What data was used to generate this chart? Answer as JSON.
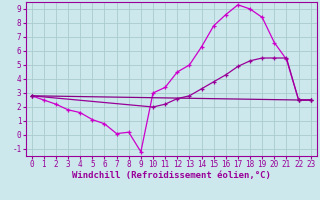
{
  "xlabel": "Windchill (Refroidissement éolien,°C)",
  "xlim": [
    -0.5,
    23.5
  ],
  "ylim": [
    -1.5,
    9.5
  ],
  "xticks": [
    0,
    1,
    2,
    3,
    4,
    5,
    6,
    7,
    8,
    9,
    10,
    11,
    12,
    13,
    14,
    15,
    16,
    17,
    18,
    19,
    20,
    21,
    22,
    23
  ],
  "yticks": [
    -1,
    0,
    1,
    2,
    3,
    4,
    5,
    6,
    7,
    8,
    9
  ],
  "bg_color": "#cce8ec",
  "grid_color": "#aacccc",
  "line_color1": "#990099",
  "line_color2": "#cc00cc",
  "line_color3": "#880088",
  "line1_x": [
    0,
    1,
    2,
    3,
    4,
    5,
    6,
    7,
    8,
    9,
    10,
    11,
    12,
    13,
    14,
    15,
    16,
    17,
    18,
    19,
    20,
    21,
    22,
    23
  ],
  "line1_y": [
    2.8,
    2.5,
    2.2,
    1.8,
    1.6,
    1.1,
    0.8,
    0.1,
    0.2,
    -1.2,
    3.0,
    3.4,
    4.5,
    5.0,
    6.3,
    7.8,
    8.6,
    9.3,
    9.0,
    8.4,
    6.6,
    5.4,
    2.5,
    2.5
  ],
  "line2_x": [
    0,
    10,
    11,
    12,
    13,
    14,
    15,
    16,
    17,
    18,
    19,
    20,
    21,
    22,
    23
  ],
  "line2_y": [
    2.8,
    2.0,
    2.2,
    2.6,
    2.8,
    3.3,
    3.8,
    4.3,
    4.9,
    5.3,
    5.5,
    5.5,
    5.5,
    2.5,
    2.5
  ],
  "line3_x": [
    0,
    22,
    23
  ],
  "line3_y": [
    2.8,
    2.5,
    2.5
  ],
  "xlabel_fontsize": 6.5,
  "tick_fontsize": 5.5
}
